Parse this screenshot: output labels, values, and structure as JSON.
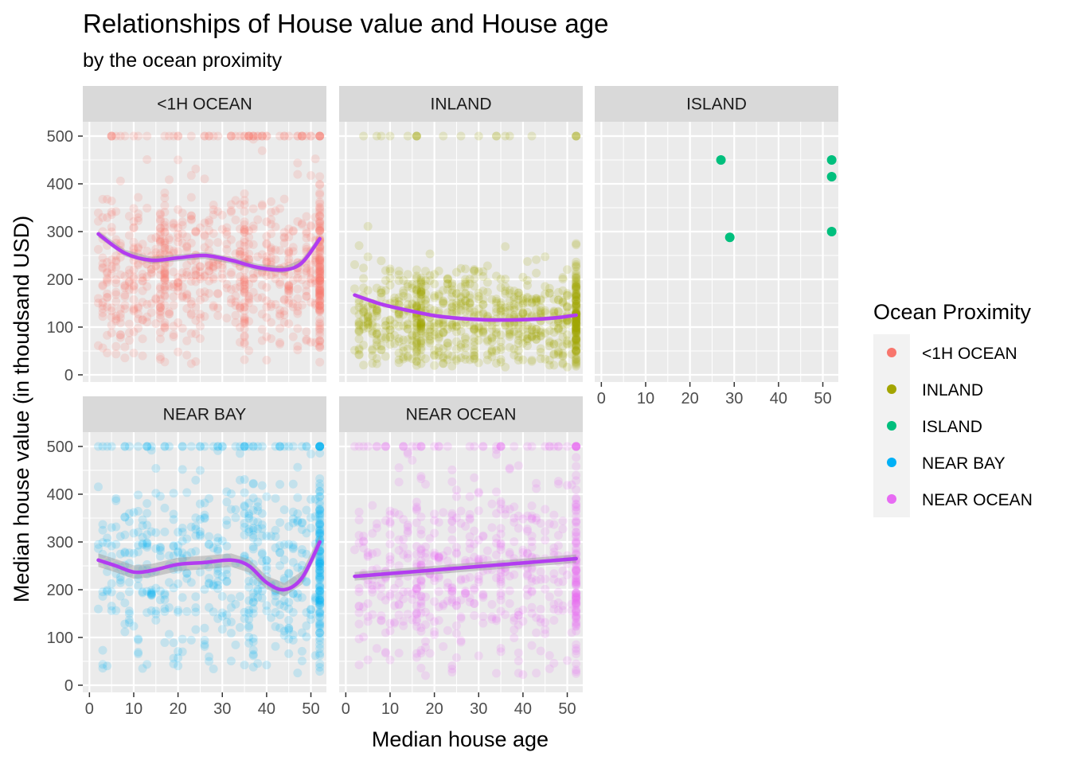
{
  "chart_data": {
    "type": "scatter",
    "title": "Relationships of House value and House age",
    "subtitle": "by the ocean proximity",
    "xlabel": "Median house age",
    "ylabel": "Median house value (in thoudsand USD)",
    "xlim": [
      0,
      52
    ],
    "ylim": [
      0,
      500
    ],
    "x_ticks": [
      0,
      10,
      20,
      30,
      40,
      50
    ],
    "y_ticks": [
      0,
      100,
      200,
      300,
      400,
      500
    ],
    "facet_layout": {
      "columns": 3,
      "rows": 2
    },
    "legend": {
      "title": "Ocean Proximity",
      "placement": "right",
      "entries": [
        {
          "name": "<1H OCEAN",
          "color": "#F8766D"
        },
        {
          "name": "INLAND",
          "color": "#A3A500"
        },
        {
          "name": "ISLAND",
          "color": "#00BF7D"
        },
        {
          "name": "NEAR BAY",
          "color": "#00B0F6"
        },
        {
          "name": "NEAR OCEAN",
          "color": "#E76BF3"
        }
      ]
    },
    "smooth_color": "#B23CF0",
    "facets": [
      {
        "name": "<1H OCEAN",
        "color": "#F8766D",
        "point_count": 900,
        "cloud": {
          "center": 215,
          "spread": 85,
          "min": 20,
          "max": 500,
          "cap_fraction": 0.06,
          "dense_ages": [
            52,
            16,
            17,
            35
          ]
        },
        "smooth": {
          "x": [
            2,
            8,
            14,
            20,
            26,
            32,
            38,
            44,
            48,
            52
          ],
          "y": [
            295,
            255,
            240,
            245,
            250,
            240,
            225,
            220,
            235,
            285
          ]
        },
        "ribbon": 7
      },
      {
        "name": "INLAND",
        "color": "#A3A500",
        "point_count": 900,
        "cloud": {
          "center": 115,
          "spread": 55,
          "min": 15,
          "max": 500,
          "cap_fraction": 0.015,
          "dense_ages": [
            52,
            16,
            17
          ]
        },
        "smooth": {
          "x": [
            2,
            8,
            14,
            20,
            26,
            32,
            38,
            44,
            48,
            52
          ],
          "y": [
            167,
            148,
            135,
            124,
            118,
            115,
            115,
            117,
            120,
            125
          ]
        },
        "ribbon": 4
      },
      {
        "name": "ISLAND",
        "color": "#00BF7D",
        "points": [
          {
            "x": 27,
            "y": 450
          },
          {
            "x": 29,
            "y": 288
          },
          {
            "x": 52,
            "y": 450
          },
          {
            "x": 52,
            "y": 415
          },
          {
            "x": 52,
            "y": 300
          }
        ]
      },
      {
        "name": "NEAR BAY",
        "color": "#00B0F6",
        "point_count": 650,
        "cloud": {
          "center": 245,
          "spread": 100,
          "min": 20,
          "max": 500,
          "cap_fraction": 0.08,
          "dense_ages": [
            52,
            52,
            52,
            36,
            37
          ]
        },
        "smooth": {
          "x": [
            2,
            6,
            10,
            14,
            20,
            26,
            32,
            36,
            40,
            44,
            48,
            52
          ],
          "y": [
            262,
            250,
            237,
            240,
            253,
            257,
            262,
            250,
            215,
            200,
            225,
            300
          ]
        },
        "ribbon": 14
      },
      {
        "name": "NEAR OCEAN",
        "color": "#E76BF3",
        "point_count": 650,
        "cloud": {
          "center": 240,
          "spread": 95,
          "min": 20,
          "max": 500,
          "cap_fraction": 0.06,
          "dense_ages": [
            52,
            16,
            17,
            35
          ]
        },
        "smooth": {
          "x": [
            2,
            52
          ],
          "y": [
            228,
            265
          ]
        },
        "ribbon": 9
      }
    ]
  }
}
